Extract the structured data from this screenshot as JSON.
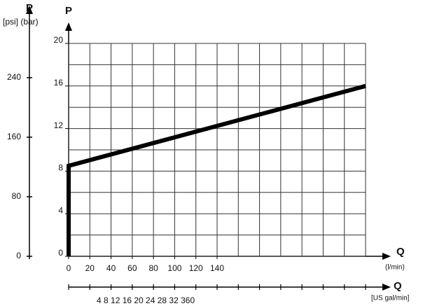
{
  "chart_data": {
    "type": "line",
    "y_axis_label": "P",
    "y2_axis_label": "P",
    "y_units_label": "[psi] (bar)",
    "x_axis_label": "Q",
    "x_units_label": "(l/min)",
    "x2_axis_label": "Q",
    "x2_units_label": "[US gal/min]",
    "x2_tick_text": "4 8 12 16 20 24 28 32 360",
    "xlim": [
      0,
      280
    ],
    "xticks": [
      0,
      20,
      40,
      60,
      80,
      100,
      120,
      140
    ],
    "ylim": [
      0,
      20
    ],
    "yticks": [
      0,
      4,
      8,
      12,
      16,
      20
    ],
    "y2lim": [
      0,
      286
    ],
    "y2ticks": [
      0,
      80,
      160,
      240
    ],
    "grid": true,
    "series": [
      {
        "color": "#000000",
        "x": [
          0,
          0,
          280
        ],
        "values": [
          0,
          8.5,
          16
        ]
      }
    ]
  }
}
